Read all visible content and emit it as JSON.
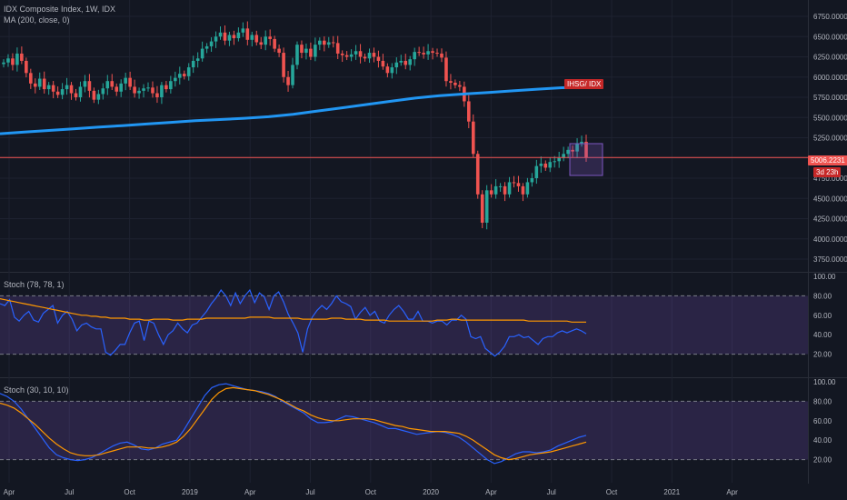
{
  "legend": {
    "main_title": "IDX Composite Index, 1W, IDX",
    "ma_label": "MA (200, close, 0)",
    "stoch1_label": "Stoch (78, 78, 1)",
    "stoch2_label": "Stoch (30, 10, 10)"
  },
  "price_label": "5006.2231",
  "countdown_label": "3d 23h",
  "symbol_label": "IHSG/ IDX",
  "colors": {
    "background": "#131722",
    "grid": "#1e2230",
    "up": "#26a69a",
    "down": "#ef5350",
    "ma": "#2196f3",
    "stoch_k": "#2962ff",
    "stoch_d": "#ff9800",
    "band": "#7e57c2",
    "price_line": "#ef5350"
  },
  "chart_data": [
    {
      "type": "candlestick",
      "title": "IDX Composite Index, 1W, IDX",
      "y_ticks": [
        "6750.0000",
        "6500.0000",
        "6250.0000",
        "6000.0000",
        "5750.0000",
        "5500.0000",
        "5250.0000",
        "5000.0000",
        "4750.0000",
        "4500.0000",
        "4250.0000",
        "4000.0000",
        "3750.0000"
      ],
      "ylim": [
        3650,
        6900
      ],
      "x_labels": [
        "Apr",
        "Jul",
        "Oct",
        "2019",
        "Apr",
        "Jul",
        "Oct",
        "2020",
        "Apr",
        "Jul",
        "Oct",
        "2021",
        "Apr"
      ],
      "last_price": 5006.2231,
      "price_path": [
        6180,
        6230,
        6150,
        6290,
        6200,
        6050,
        5920,
        5880,
        5980,
        5850,
        5900,
        5820,
        5780,
        5850,
        5900,
        5800,
        5750,
        5880,
        5950,
        5830,
        5720,
        5790,
        5860,
        5950,
        5880,
        5820,
        5920,
        5990,
        5880,
        5800,
        5830,
        5860,
        5870,
        5800,
        5750,
        5900,
        5850,
        5950,
        5990,
        6040,
        6010,
        6120,
        6200,
        6230,
        6350,
        6380,
        6440,
        6500,
        6550,
        6450,
        6520,
        6480,
        6550,
        6600,
        6460,
        6520,
        6430,
        6400,
        6500,
        6470,
        6350,
        6300,
        6000,
        5900,
        6150,
        6400,
        6300,
        6350,
        6250,
        6400,
        6450,
        6400,
        6430,
        6420,
        6290,
        6270,
        6250,
        6280,
        6320,
        6250,
        6230,
        6300,
        6250,
        6200,
        6130,
        6050,
        6120,
        6180,
        6200,
        6150,
        6220,
        6310,
        6300,
        6280,
        6320,
        6300,
        6290,
        6240,
        5950,
        5930,
        5900,
        5880,
        5700,
        5450,
        5050,
        4550,
        4200,
        4600,
        4550,
        4650,
        4650,
        4550,
        4700,
        4690,
        4650,
        4550,
        4700,
        4750,
        4900,
        4930,
        4880,
        4950,
        4960,
        5000,
        5050,
        5100,
        5080,
        5180,
        5200,
        5006
      ],
      "ma200": [
        5300,
        5320,
        5340,
        5360,
        5380,
        5400,
        5420,
        5440,
        5460,
        5475,
        5490,
        5510,
        5540,
        5580,
        5620,
        5660,
        5700,
        5740,
        5770,
        5790,
        5810,
        5830,
        5850,
        5868,
        5870
      ],
      "pane_labels": [
        "IHSG/ IDX"
      ]
    },
    {
      "type": "line",
      "title": "Stoch (78, 78, 1)",
      "y_ticks": [
        "100.00",
        "80.00",
        "60.00",
        "40.00",
        "20.00"
      ],
      "ylim": [
        0,
        100
      ],
      "band": [
        20,
        80
      ],
      "series": [
        {
          "values": [
            72,
            70,
            76,
            58,
            54,
            60,
            64,
            55,
            53,
            62,
            66,
            70,
            52,
            60,
            64,
            56,
            44,
            50,
            52,
            48,
            46,
            46,
            22,
            19,
            24,
            30,
            30,
            42,
            52,
            54,
            34,
            54,
            52,
            40,
            30,
            40,
            44,
            52,
            46,
            42,
            50,
            52,
            58,
            64,
            72,
            78,
            86,
            80,
            70,
            83,
            72,
            80,
            86,
            73,
            83,
            79,
            66,
            80,
            84,
            74,
            61,
            52,
            42,
            22,
            46,
            58,
            65,
            70,
            66,
            72,
            80,
            74,
            72,
            69,
            56,
            63,
            68,
            60,
            64,
            54,
            52,
            60,
            66,
            70,
            64,
            56,
            56,
            64,
            54,
            54,
            52,
            54,
            54,
            50,
            55,
            55,
            60,
            56,
            38,
            36,
            38,
            26,
            22,
            18,
            22,
            28,
            38,
            38,
            40,
            37,
            38,
            34,
            30,
            36,
            38,
            38,
            42,
            44,
            42,
            44,
            46,
            44,
            41
          ]
        },
        {
          "values": [
            77,
            76,
            75,
            74,
            73,
            72,
            71,
            70,
            69,
            68,
            67,
            66,
            65,
            64,
            63,
            62,
            61,
            60,
            60,
            59,
            59,
            58,
            58,
            57,
            57,
            57,
            57,
            56,
            56,
            56,
            55,
            55,
            56,
            56,
            56,
            56,
            55,
            55,
            55,
            56,
            56,
            56,
            56,
            57,
            57,
            57,
            57,
            57,
            57,
            57,
            57,
            57,
            58,
            58,
            58,
            58,
            58,
            57,
            57,
            57,
            57,
            57,
            57,
            56,
            56,
            56,
            56,
            56,
            56,
            57,
            57,
            57,
            56,
            56,
            56,
            56,
            55,
            55,
            55,
            55,
            55,
            54,
            54,
            54,
            54,
            54,
            54,
            54,
            54,
            54,
            54,
            55,
            55,
            55,
            56,
            56,
            55,
            55,
            55,
            55,
            55,
            55,
            55,
            55,
            55,
            55,
            55,
            55,
            55,
            55,
            54,
            54,
            54,
            54,
            54,
            54,
            54,
            54,
            54,
            53,
            53,
            53,
            53
          ]
        }
      ]
    },
    {
      "type": "line",
      "title": "Stoch (30, 10, 10)",
      "y_ticks": [
        "100.00",
        "80.00",
        "60.00",
        "40.00",
        "20.00"
      ],
      "ylim": [
        0,
        100
      ],
      "band": [
        20,
        80
      ],
      "series": [
        {
          "values": [
            88,
            85,
            80,
            72,
            62,
            52,
            42,
            32,
            25,
            22,
            20,
            19,
            20,
            22,
            26,
            30,
            34,
            37,
            38,
            35,
            31,
            30,
            32,
            36,
            38,
            40,
            50,
            62,
            74,
            86,
            94,
            97,
            98,
            96,
            94,
            92,
            91,
            90,
            88,
            85,
            80,
            76,
            72,
            68,
            62,
            58,
            58,
            59,
            62,
            65,
            64,
            62,
            60,
            58,
            55,
            52,
            52,
            50,
            48,
            46,
            47,
            48,
            49,
            48,
            46,
            43,
            38,
            32,
            26,
            20,
            16,
            18,
            22,
            26,
            28,
            28,
            27,
            28,
            30,
            34,
            37,
            40,
            43,
            45
          ]
        },
        {
          "values": [
            78,
            76,
            73,
            68,
            62,
            56,
            49,
            42,
            36,
            31,
            27,
            25,
            24,
            24,
            25,
            27,
            29,
            31,
            33,
            33,
            33,
            32,
            32,
            33,
            35,
            38,
            44,
            52,
            62,
            72,
            82,
            89,
            93,
            94,
            93,
            92,
            91,
            89,
            87,
            84,
            81,
            77,
            73,
            70,
            66,
            63,
            61,
            60,
            60,
            61,
            62,
            62,
            62,
            61,
            59,
            57,
            55,
            54,
            52,
            51,
            50,
            49,
            49,
            49,
            48,
            47,
            44,
            40,
            35,
            30,
            25,
            22,
            20,
            21,
            23,
            25,
            26,
            27,
            28,
            30,
            32,
            34,
            36,
            38
          ]
        }
      ]
    }
  ]
}
